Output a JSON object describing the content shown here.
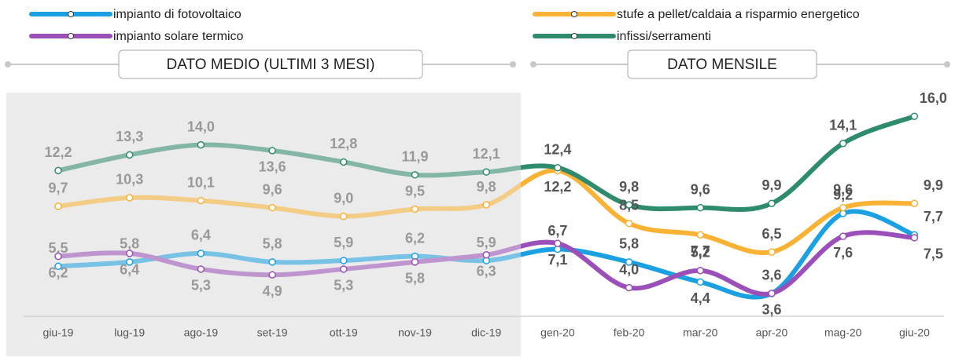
{
  "chart_data": {
    "type": "line",
    "sections": [
      "DATO MEDIO (ULTIMI 3 MESI)",
      "DATO MENSILE"
    ],
    "categories": [
      "giu-19",
      "lug-19",
      "ago-19",
      "set-19",
      "ott-19",
      "nov-19",
      "dic-19",
      "gen-20",
      "feb-20",
      "mar-20",
      "apr-20",
      "mag-20",
      "giu-20"
    ],
    "ylim": [
      2,
      17
    ],
    "series": [
      {
        "name": "impianto di fotovoltaico",
        "color": "#1ba1e2",
        "values": [
          5.5,
          5.8,
          6.4,
          5.8,
          5.9,
          6.2,
          5.9,
          6.7,
          5.8,
          4.4,
          3.6,
          9.2,
          7.7
        ],
        "value_labels": [
          "5,5",
          "5,8",
          "6,4",
          "5,8",
          "5,9",
          "6,2",
          "5,9",
          "6,7",
          "5,8",
          "4,4",
          "3,6",
          "9,2",
          "7,7"
        ]
      },
      {
        "name": "impianto solare termico",
        "color": "#9b4fb8",
        "values": [
          6.2,
          6.4,
          5.3,
          4.9,
          5.3,
          5.8,
          6.3,
          7.1,
          4.0,
          5.2,
          3.6,
          7.6,
          7.5
        ],
        "value_labels": [
          "6,2",
          "6,4",
          "5,3",
          "4,9",
          "5,3",
          "5,8",
          "6,3",
          "7,1",
          "4,0",
          "5,2",
          "3,6",
          "7,6",
          "7,5"
        ]
      },
      {
        "name": "stufe a pellet/caldaia a risparmio energetico",
        "color": "#f9b233",
        "values": [
          9.7,
          10.3,
          10.1,
          9.6,
          9.0,
          9.5,
          9.8,
          12.2,
          8.5,
          7.7,
          6.5,
          9.6,
          9.9
        ],
        "value_labels": [
          "9,7",
          "10,3",
          "10,1",
          "9,6",
          "9,0",
          "9,5",
          "9,8",
          "12,2",
          "8,5",
          "7,7",
          "6,5",
          "9,6",
          "9,9"
        ]
      },
      {
        "name": "infissi/serramenti",
        "color": "#2e8b6e",
        "values": [
          12.2,
          13.3,
          14.0,
          13.6,
          12.8,
          11.9,
          12.1,
          12.4,
          9.8,
          9.6,
          9.9,
          14.1,
          16.0
        ],
        "value_labels": [
          "12,2",
          "13,3",
          "14,0",
          "13,6",
          "12,8",
          "11,9",
          "12,1",
          "12,4",
          "9,8",
          "9,6",
          "9,9",
          "14,1",
          "16,0"
        ]
      }
    ]
  }
}
